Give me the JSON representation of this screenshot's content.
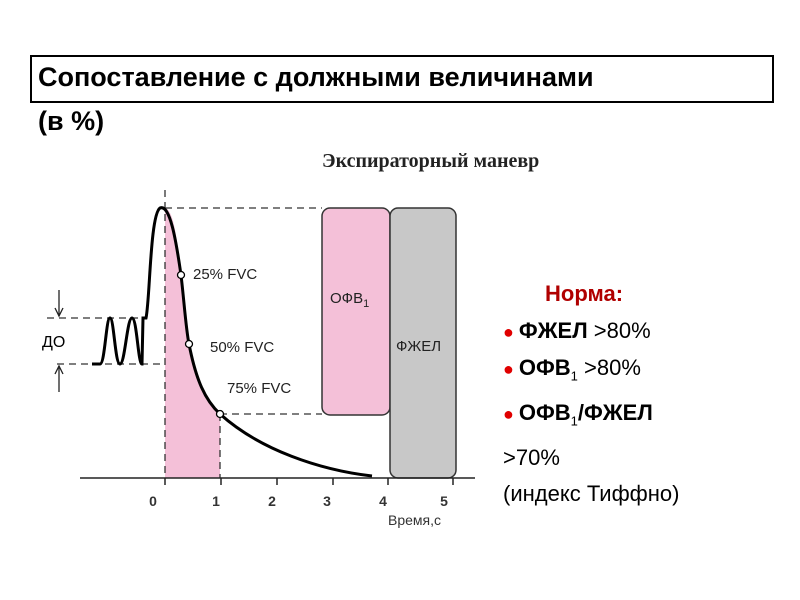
{
  "title": "Сопоставление с должными величинами",
  "subtitle": "(в %)",
  "caption": "Экспираторный маневр",
  "diagram": {
    "tidal_label": "ДО",
    "points": [
      "25% FVC",
      "50% FVC",
      "75% FVC"
    ],
    "fev1_label": "ОФВ",
    "fev1_sub": "1",
    "fvc_label": "ФЖЕЛ",
    "x_ticks": [
      "0",
      "1",
      "2",
      "3",
      "4",
      "5"
    ],
    "x_label": "Время,с",
    "colors": {
      "fev1": "#f4c0d8",
      "fvc": "#c8c8c8",
      "shade": "#f4c0d8"
    }
  },
  "norms": {
    "heading": "Норма:",
    "items": [
      {
        "name": "ФЖЕЛ",
        "value": ">80%"
      },
      {
        "name": "ОФВ",
        "sub": "1",
        "value": ">80%"
      },
      {
        "name": "ОФВ",
        "sub": "1",
        "rest": "/ФЖЕЛ",
        "value": ">70%"
      }
    ],
    "note": "(индекс Тиффно)",
    "heading_color": "#b00000",
    "bullet_color": "#e00000"
  }
}
